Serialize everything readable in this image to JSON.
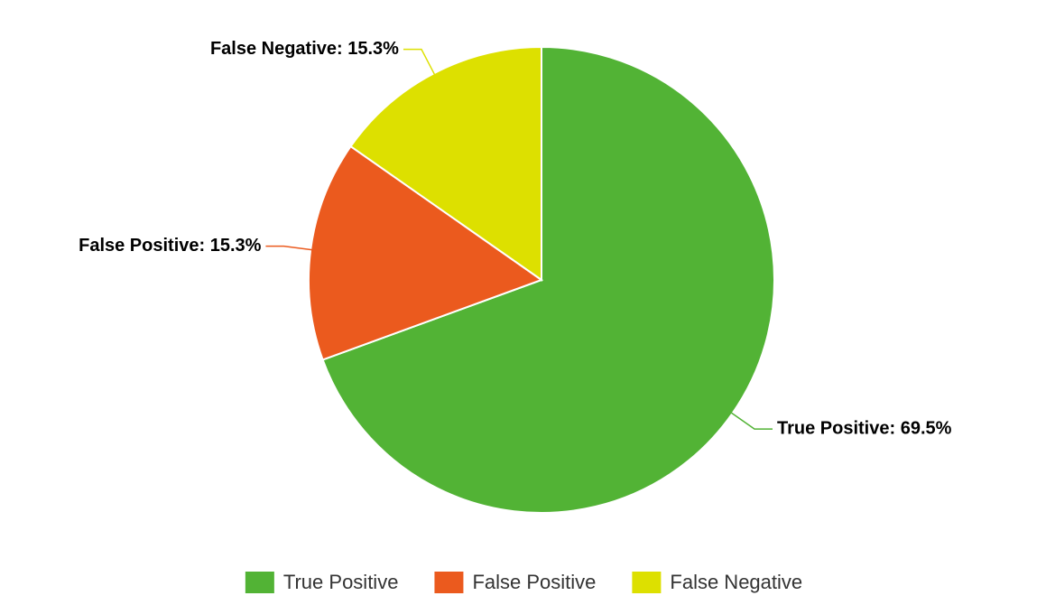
{
  "chart_data": {
    "type": "pie",
    "categories": [
      "True Positive",
      "False Positive",
      "False Negative"
    ],
    "values": [
      69.5,
      15.3,
      15.3
    ],
    "value_labels": [
      "True Positive: 69.5%",
      "False Positive: 15.3%",
      "False Negative: 15.3%"
    ],
    "colors": [
      "#52b335",
      "#eb5a1e",
      "#dde000"
    ],
    "legend": "bottom"
  }
}
